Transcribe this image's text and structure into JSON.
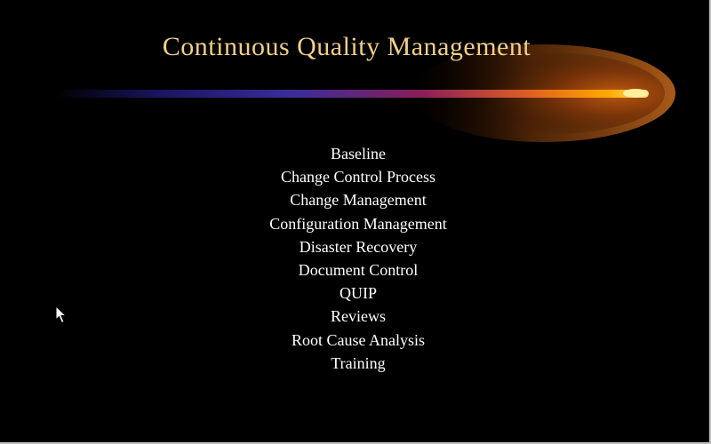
{
  "slide": {
    "title": "Continuous Quality Management",
    "items": [
      "Baseline",
      "Change Control Process",
      "Change Management",
      "Configuration Management",
      "Disaster Recovery",
      "Document Control",
      "QUIP",
      "Reviews",
      "Root Cause Analysis",
      "Training"
    ]
  },
  "colors": {
    "background": "#000000",
    "title": "#f1cf86",
    "items": "#ffffff",
    "comet_head": "#ff9d00"
  },
  "icons": {
    "cursor": "mouse-pointer-icon"
  }
}
